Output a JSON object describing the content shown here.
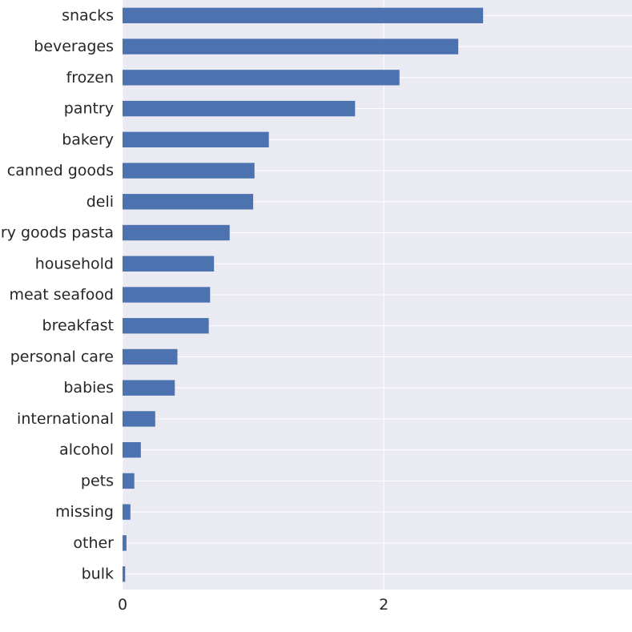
{
  "chart_data": {
    "type": "bar",
    "orientation": "horizontal",
    "categories": [
      "snacks",
      "beverages",
      "frozen",
      "pantry",
      "bakery",
      "canned goods",
      "deli",
      "dry goods pasta",
      "household",
      "meat seafood",
      "breakfast",
      "personal care",
      "babies",
      "international",
      "alcohol",
      "pets",
      "missing",
      "other",
      "bulk"
    ],
    "values": [
      2.76,
      2.57,
      2.12,
      1.78,
      1.12,
      1.01,
      1.0,
      0.82,
      0.7,
      0.67,
      0.66,
      0.42,
      0.4,
      0.25,
      0.14,
      0.09,
      0.06,
      0.03,
      0.02
    ],
    "xlim": [
      0,
      3.9
    ],
    "xticks": [
      0,
      2
    ],
    "xtick_labels": [
      "0",
      "2"
    ],
    "grid": true,
    "colors": {
      "bar": "#4c72b0",
      "background": "#eaeaf2",
      "grid": "#ffffff",
      "text": "#262626"
    }
  }
}
